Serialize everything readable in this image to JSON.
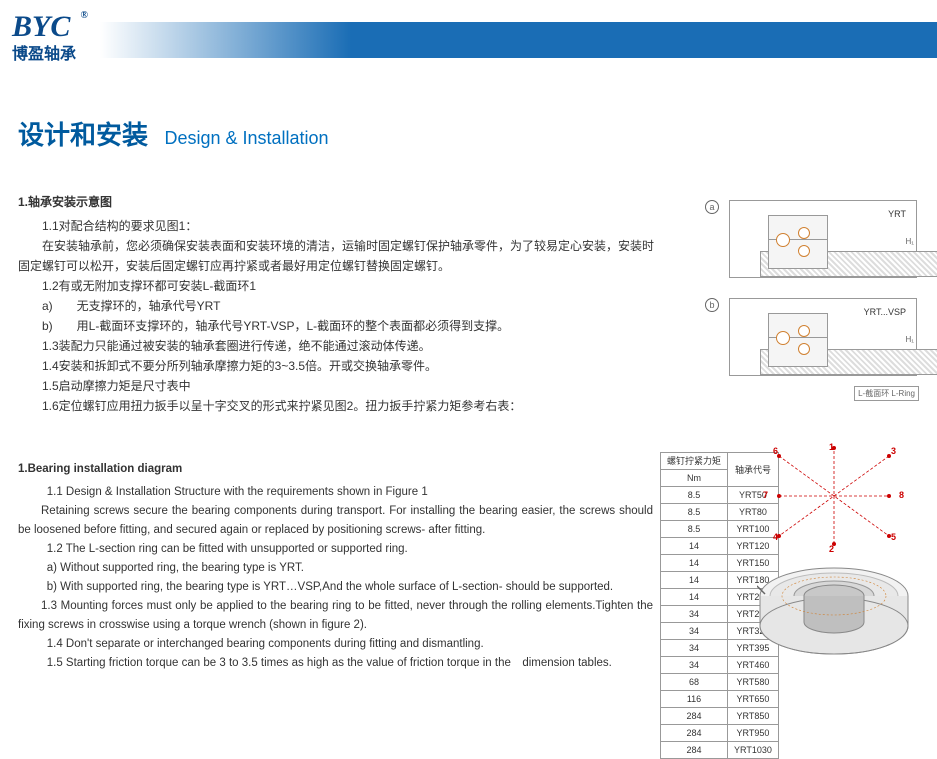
{
  "logo": {
    "en": "BYC",
    "r": "®",
    "cn": "博盈轴承"
  },
  "title": {
    "cn": "设计和安装",
    "en": "Design & Installation"
  },
  "sec1": {
    "h": "1.轴承安装示意图",
    "l1": "1.1对配合结构的要求见图1：",
    "l2": "在安装轴承前，您必须确保安装表面和安装环境的清洁，运输时固定螺钉保护轴承零件，为了较易定心安装，安装时固定螺钉可以松开，安装后固定螺钉应再拧紧或者最好用定位螺钉替换固定螺钉。",
    "l3": "1.2有或无附加支撑环都可安装L-截面环1",
    "l4": "a)　　无支撑环的，轴承代号YRT",
    "l5": "b)　　用L-截面环支撑环的，轴承代号YRT-VSP，L-截面环的整个表面都必须得到支撑。",
    "l6": "1.3装配力只能通过被安装的轴承套圈进行传递，绝不能通过滚动体传递。",
    "l7": "1.4安装和拆卸式不要分所列轴承摩擦力矩的3~3.5倍。开或交换轴承零件。",
    "l8": "1.5启动摩擦力矩是尺寸表中",
    "l9": "1.6定位螺钉应用扭力扳手以呈十字交叉的形式来拧紧见图2。扭力扳手拧紧力矩参考右表："
  },
  "sec2": {
    "h": "1.Bearing installation diagram",
    "l1": "1.1 Design & Installation Structure with the requirements shown in Figure 1",
    "l2": "Retaining screws secure the bearing components during transport. For installing the bearing easier, the screws should be loosened before fitting, and secured again or replaced by positioning screws- after fitting.",
    "l3": "1.2 The L-section ring can be fitted with unsupported or supported ring.",
    "l4": "a) Without supported ring, the bearing type is YRT.",
    "l5": "b) With supported ring, the bearing type is YRT…VSP,And the whole surface of L-section- should be supported.",
    "l6": "1.3 Mounting forces must only be applied to the bearing ring to be fitted, never through the rolling elements.Tighten the fixing screws in crosswise using a torque wrench (shown in figure 2).",
    "l7": "1.4 Don't separate or interchanged bearing components during fitting and dismantling.",
    "l8": "1.5 Starting friction torque can be 3 to 3.5 times as high as the value of friction torque in the　dimension tables."
  },
  "diag": {
    "a": "a",
    "b": "b",
    "yrt": "YRT",
    "yrtvsp": "YRT...VSP",
    "h1": "H₁",
    "lring": "L-截面环 L-Ring"
  },
  "table": {
    "th1": "螺钉拧紧力矩",
    "th2": "轴承代号",
    "unit": "Nm",
    "rows": [
      [
        "8.5",
        "YRT50"
      ],
      [
        "8.5",
        "YRT80"
      ],
      [
        "8.5",
        "YRT100"
      ],
      [
        "14",
        "YRT120"
      ],
      [
        "14",
        "YRT150"
      ],
      [
        "14",
        "YRT180"
      ],
      [
        "14",
        "YRT200"
      ],
      [
        "34",
        "YRT260"
      ],
      [
        "34",
        "YRT325"
      ],
      [
        "34",
        "YRT395"
      ],
      [
        "34",
        "YRT460"
      ],
      [
        "68",
        "YRT580"
      ],
      [
        "116",
        "YRT650"
      ],
      [
        "284",
        "YRT850"
      ],
      [
        "284",
        "YRT950"
      ],
      [
        "284",
        "YRT1030"
      ]
    ]
  },
  "nums": {
    "n1": "1",
    "n2": "2",
    "n3": "3",
    "n4": "4",
    "n5": "5",
    "n6": "6",
    "n7": "7",
    "n8": "8"
  }
}
